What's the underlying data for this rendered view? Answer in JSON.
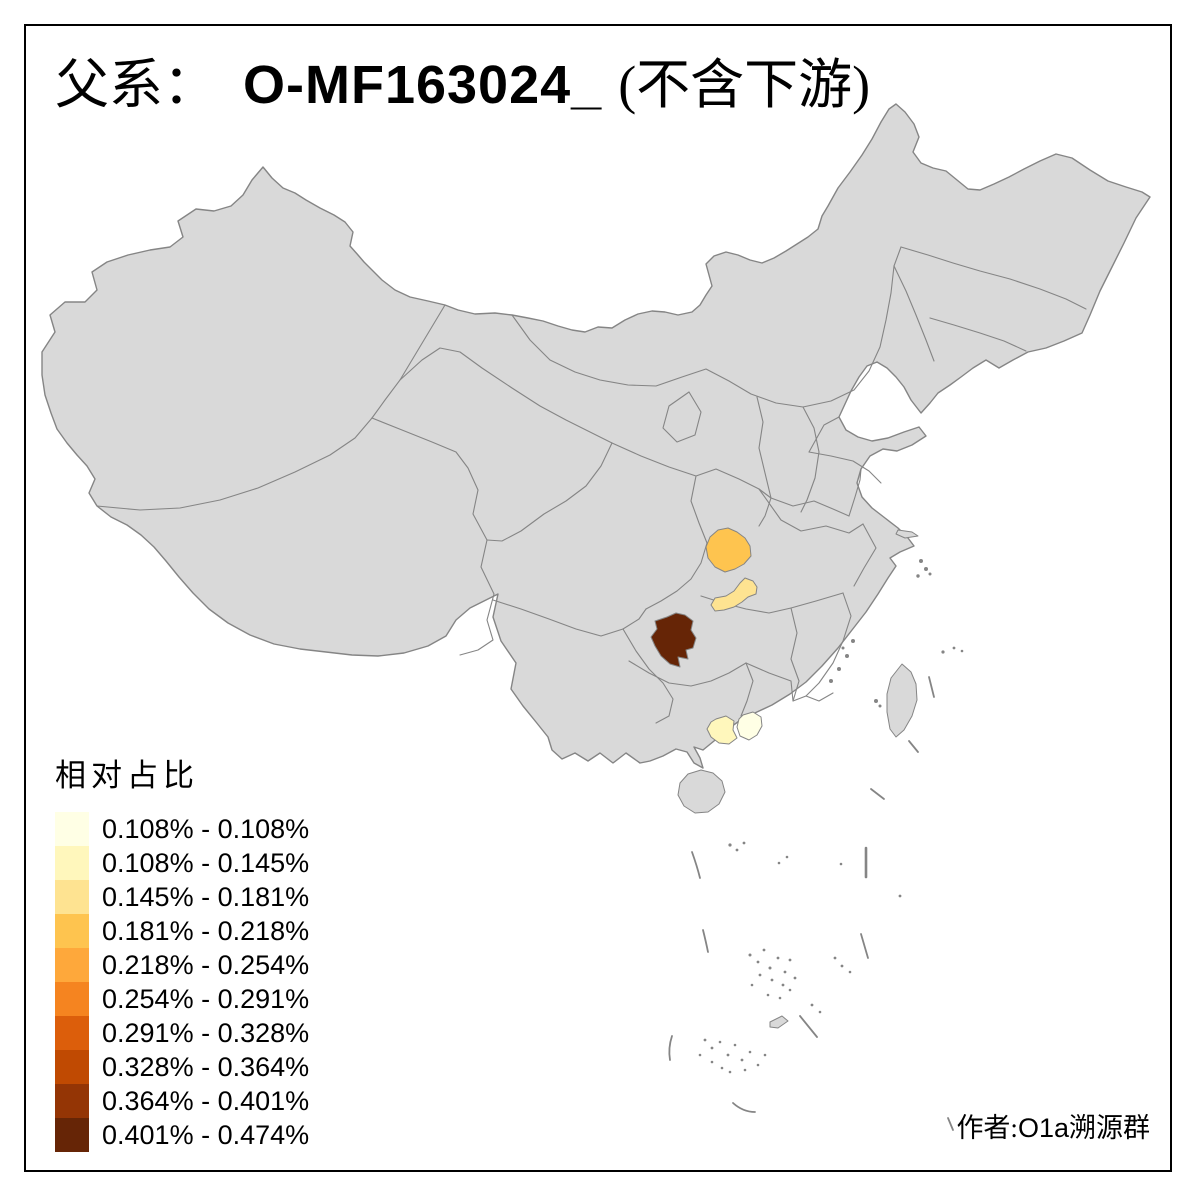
{
  "title": {
    "prefix": "父系：",
    "haplogroup": "O-MF163024_",
    "suffix": "(不含下游)"
  },
  "legend": {
    "title": "相对占比",
    "bins": [
      {
        "label": "0.108% - 0.108%",
        "color": "#FFFFE5"
      },
      {
        "label": "0.108% - 0.145%",
        "color": "#FFF7BC"
      },
      {
        "label": "0.145% - 0.181%",
        "color": "#FEE391"
      },
      {
        "label": "0.181% - 0.218%",
        "color": "#FEC44F"
      },
      {
        "label": "0.218% - 0.254%",
        "color": "#FEA83B"
      },
      {
        "label": "0.254% - 0.291%",
        "color": "#F58420"
      },
      {
        "label": "0.291% - 0.328%",
        "color": "#DC5E0B"
      },
      {
        "label": "0.328% - 0.364%",
        "color": "#C04A02"
      },
      {
        "label": "0.364% - 0.401%",
        "color": "#943505"
      },
      {
        "label": "0.401% - 0.474%",
        "color": "#662506"
      }
    ]
  },
  "attribution": {
    "prefix": "作者:",
    "latin": "O1a",
    "suffix": "溯源群"
  },
  "map": {
    "land_color": "#D9D9D9",
    "border_color": "#858585",
    "background": "#FFFFFF",
    "regions": [
      {
        "id": "highlight-1",
        "bin": 4,
        "range": "0.181% - 0.218%",
        "color": "#FEC44F"
      },
      {
        "id": "highlight-2",
        "bin": 3,
        "range": "0.145% - 0.181%",
        "color": "#FEE391"
      },
      {
        "id": "highlight-3",
        "bin": 10,
        "range": "0.401% - 0.474%",
        "color": "#662506"
      },
      {
        "id": "highlight-4",
        "bin": 2,
        "range": "0.108% - 0.145%",
        "color": "#FFF7BC"
      },
      {
        "id": "highlight-5",
        "bin": 1,
        "range": "0.108% - 0.108%",
        "color": "#FFFFE5"
      }
    ]
  }
}
